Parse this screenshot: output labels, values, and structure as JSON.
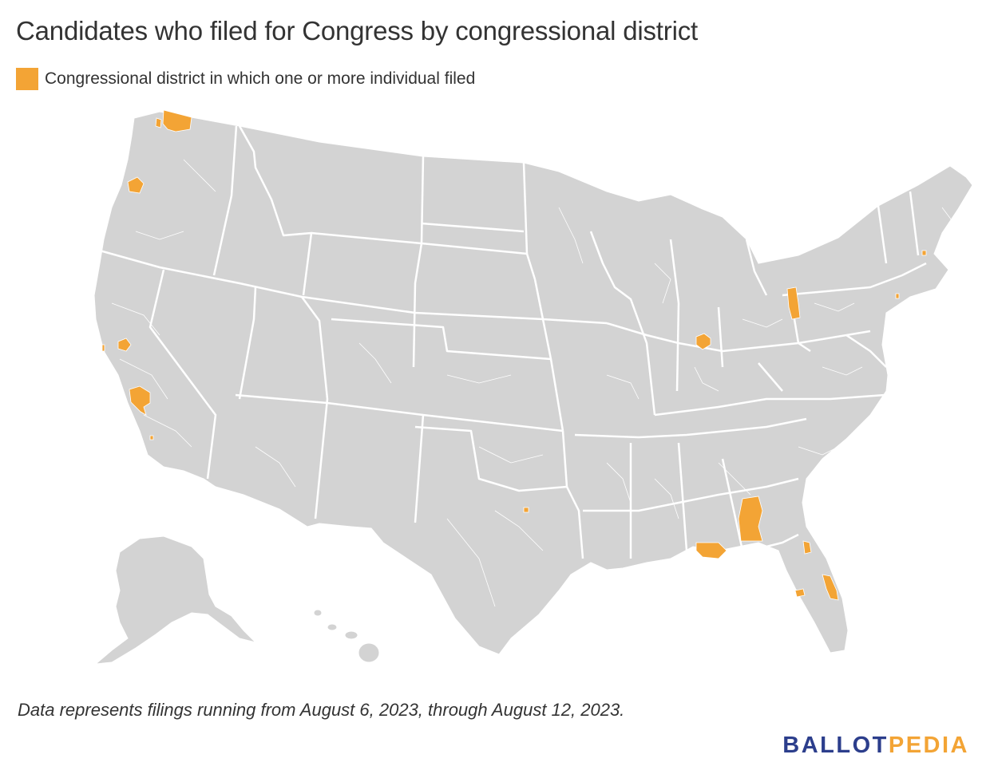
{
  "title": "Candidates who filed for Congress by congressional district",
  "legend": {
    "label": "Congressional district in which one or more individual filed",
    "color": "#f3a435"
  },
  "map": {
    "base_color": "#d3d3d3",
    "border_color": "#ffffff",
    "highlight_color": "#f3a435"
  },
  "footnote": "Data represents filings running from August 6, 2023, through August 12, 2023.",
  "logo": {
    "part1": "BALLOT",
    "part2": "PEDIA",
    "color1": "#2c3e8c",
    "color2": "#f3a435"
  }
}
